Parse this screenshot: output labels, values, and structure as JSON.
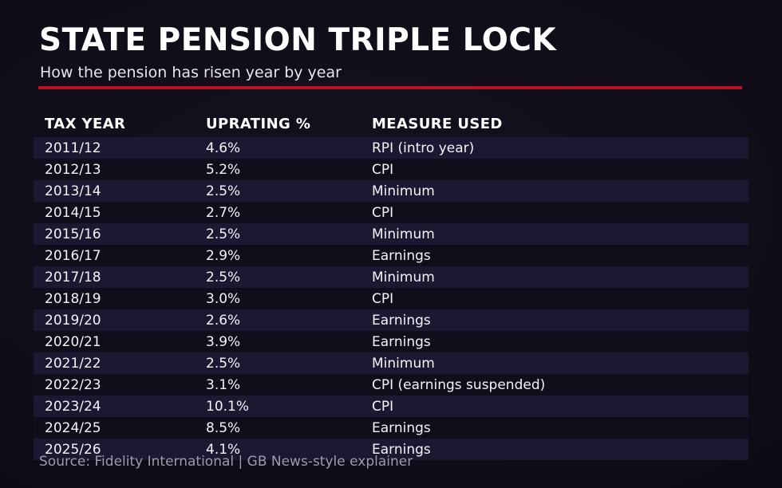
{
  "page": {
    "title": "STATE PENSION TRIPLE LOCK",
    "subtitle": "How the pension has risen year by year",
    "source": "Source: Fidelity International | GB News-style explainer"
  },
  "colors": {
    "background": "#0e0c16",
    "row_highlight": "#1c1832",
    "row_dark": "#100e1a",
    "accent_red": "#c01020",
    "text": "#f4f2f8",
    "muted": "#9e9bac"
  },
  "table": {
    "columns": [
      "TAX YEAR",
      "UPRATING %",
      "MEASURE USED"
    ],
    "rows": [
      [
        "2011/12",
        "4.6%",
        "RPI (intro year)"
      ],
      [
        "2012/13",
        "5.2%",
        "CPI"
      ],
      [
        "2013/14",
        "2.5%",
        "Minimum"
      ],
      [
        "2014/15",
        "2.7%",
        "CPI"
      ],
      [
        "2015/16",
        "2.5%",
        "Minimum"
      ],
      [
        "2016/17",
        "2.9%",
        "Earnings"
      ],
      [
        "2017/18",
        "2.5%",
        "Minimum"
      ],
      [
        "2018/19",
        "3.0%",
        "CPI"
      ],
      [
        "2019/20",
        "2.6%",
        "Earnings"
      ],
      [
        "2020/21",
        "3.9%",
        "Earnings"
      ],
      [
        "2021/22",
        "2.5%",
        "Minimum"
      ],
      [
        "2022/23",
        "3.1%",
        "CPI (earnings suspended)"
      ],
      [
        "2023/24",
        "10.1%",
        "CPI"
      ],
      [
        "2024/25",
        "8.5%",
        "Earnings"
      ],
      [
        "2025/26",
        "4.1%",
        "Earnings"
      ]
    ]
  },
  "chart_data": {
    "type": "table",
    "title": "STATE PENSION TRIPLE LOCK",
    "subtitle": "How the pension has risen year by year",
    "columns": [
      "TAX YEAR",
      "UPRATING %",
      "MEASURE USED"
    ],
    "rows": [
      {
        "tax_year": "2011/12",
        "uprating_pct": 4.6,
        "measure": "RPI (intro year)"
      },
      {
        "tax_year": "2012/13",
        "uprating_pct": 5.2,
        "measure": "CPI"
      },
      {
        "tax_year": "2013/14",
        "uprating_pct": 2.5,
        "measure": "Minimum"
      },
      {
        "tax_year": "2014/15",
        "uprating_pct": 2.7,
        "measure": "CPI"
      },
      {
        "tax_year": "2015/16",
        "uprating_pct": 2.5,
        "measure": "Minimum"
      },
      {
        "tax_year": "2016/17",
        "uprating_pct": 2.9,
        "measure": "Earnings"
      },
      {
        "tax_year": "2017/18",
        "uprating_pct": 2.5,
        "measure": "Minimum"
      },
      {
        "tax_year": "2018/19",
        "uprating_pct": 3.0,
        "measure": "CPI"
      },
      {
        "tax_year": "2019/20",
        "uprating_pct": 2.6,
        "measure": "Earnings"
      },
      {
        "tax_year": "2020/21",
        "uprating_pct": 3.9,
        "measure": "Earnings"
      },
      {
        "tax_year": "2021/22",
        "uprating_pct": 2.5,
        "measure": "Minimum"
      },
      {
        "tax_year": "2022/23",
        "uprating_pct": 3.1,
        "measure": "CPI (earnings suspended)"
      },
      {
        "tax_year": "2023/24",
        "uprating_pct": 10.1,
        "measure": "CPI"
      },
      {
        "tax_year": "2024/25",
        "uprating_pct": 8.5,
        "measure": "Earnings"
      },
      {
        "tax_year": "2025/26",
        "uprating_pct": 4.1,
        "measure": "Earnings"
      }
    ],
    "source": "Source: Fidelity International | GB News-style explainer"
  }
}
